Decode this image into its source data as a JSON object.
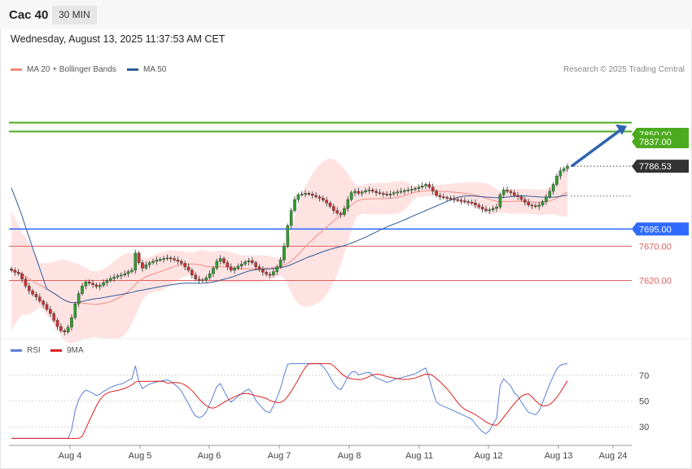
{
  "header": {
    "title": "Cac 40",
    "timeframe": "30 MIN"
  },
  "timestamp": "Wednesday, August 13, 2025 11:37:53 AM CET",
  "legend": {
    "ma20": {
      "label": "MA 20 + Bollinger Bands",
      "color": "#f28b82"
    },
    "ma50": {
      "label": "MA 50",
      "color": "#2f5c9a"
    },
    "credit": "Research © 2025 Trading Central"
  },
  "rsi_legend": {
    "rsi": {
      "label": "RSI",
      "color": "#5b7fd6"
    },
    "ma9": {
      "label": "9MA",
      "color": "#e02020"
    }
  },
  "chart_data": [
    {
      "type": "candlestick",
      "title": "Cac 40",
      "y_range": [
        7540,
        7910
      ],
      "x_tick_labels": [
        "Aug 4",
        "Aug 5",
        "Aug 6",
        "Aug 7",
        "Aug 8",
        "Aug 11",
        "Aug 12",
        "Aug 13",
        "Aug 24"
      ],
      "close_series": [
        7635,
        7632,
        7630,
        7622,
        7612,
        7605,
        7600,
        7596,
        7590,
        7585,
        7578,
        7572,
        7562,
        7553,
        7547,
        7545,
        7552,
        7566,
        7586,
        7601,
        7612,
        7618,
        7616,
        7614,
        7611,
        7613,
        7617,
        7620,
        7623,
        7625,
        7627,
        7628,
        7630,
        7633,
        7635,
        7660,
        7646,
        7638,
        7643,
        7646,
        7648,
        7650,
        7651,
        7652,
        7653,
        7652,
        7650,
        7648,
        7645,
        7640,
        7635,
        7628,
        7622,
        7620,
        7621,
        7624,
        7630,
        7638,
        7648,
        7652,
        7646,
        7640,
        7635,
        7638,
        7641,
        7644,
        7647,
        7649,
        7646,
        7640,
        7636,
        7632,
        7629,
        7628,
        7633,
        7640,
        7650,
        7670,
        7700,
        7722,
        7738,
        7745,
        7746,
        7747,
        7746,
        7744,
        7742,
        7740,
        7737,
        7733,
        7728,
        7722,
        7718,
        7716,
        7725,
        7738,
        7748,
        7750,
        7747,
        7749,
        7751,
        7752,
        7750,
        7748,
        7747,
        7746,
        7745,
        7746,
        7748,
        7749,
        7750,
        7751,
        7752,
        7753,
        7754,
        7756,
        7758,
        7760,
        7756,
        7750,
        7744,
        7742,
        7741,
        7740,
        7739,
        7738,
        7737,
        7736,
        7735,
        7734,
        7733,
        7730,
        7727,
        7724,
        7722,
        7723,
        7725,
        7727,
        7745,
        7752,
        7750,
        7748,
        7744,
        7742,
        7738,
        7734,
        7730,
        7729,
        7728,
        7730,
        7735,
        7742,
        7750,
        7760,
        7772,
        7780,
        7783,
        7786.53
      ],
      "series": [
        {
          "name": "MA 20 + Bollinger Bands",
          "color": "#f28b82"
        },
        {
          "name": "MA 50",
          "color": "#2f5c9a"
        }
      ],
      "levels": [
        {
          "label": "7850.00",
          "value": 7850,
          "color": "#4caa1e"
        },
        {
          "label": "7837.00",
          "value": 7837,
          "color": "#4caa1e"
        },
        {
          "label": "7786.53",
          "value": 7786.53,
          "color": "#333333"
        },
        {
          "label": "7695.00",
          "value": 7695,
          "color": "#2f6bff"
        },
        {
          "label": "7670.00",
          "value": 7670,
          "color": "#e06060"
        },
        {
          "label": "7620.00",
          "value": 7620,
          "color": "#e06060"
        }
      ],
      "arrow": {
        "from": 7786.53,
        "to": 7845,
        "color": "#2e64b0"
      }
    },
    {
      "type": "line",
      "title": "RSI",
      "y_range": [
        20,
        80
      ],
      "y_tick_labels": [
        "70",
        "50",
        "30"
      ],
      "series": [
        {
          "name": "RSI",
          "color": "#5b7fd6"
        },
        {
          "name": "9MA",
          "color": "#e02020"
        }
      ]
    }
  ]
}
